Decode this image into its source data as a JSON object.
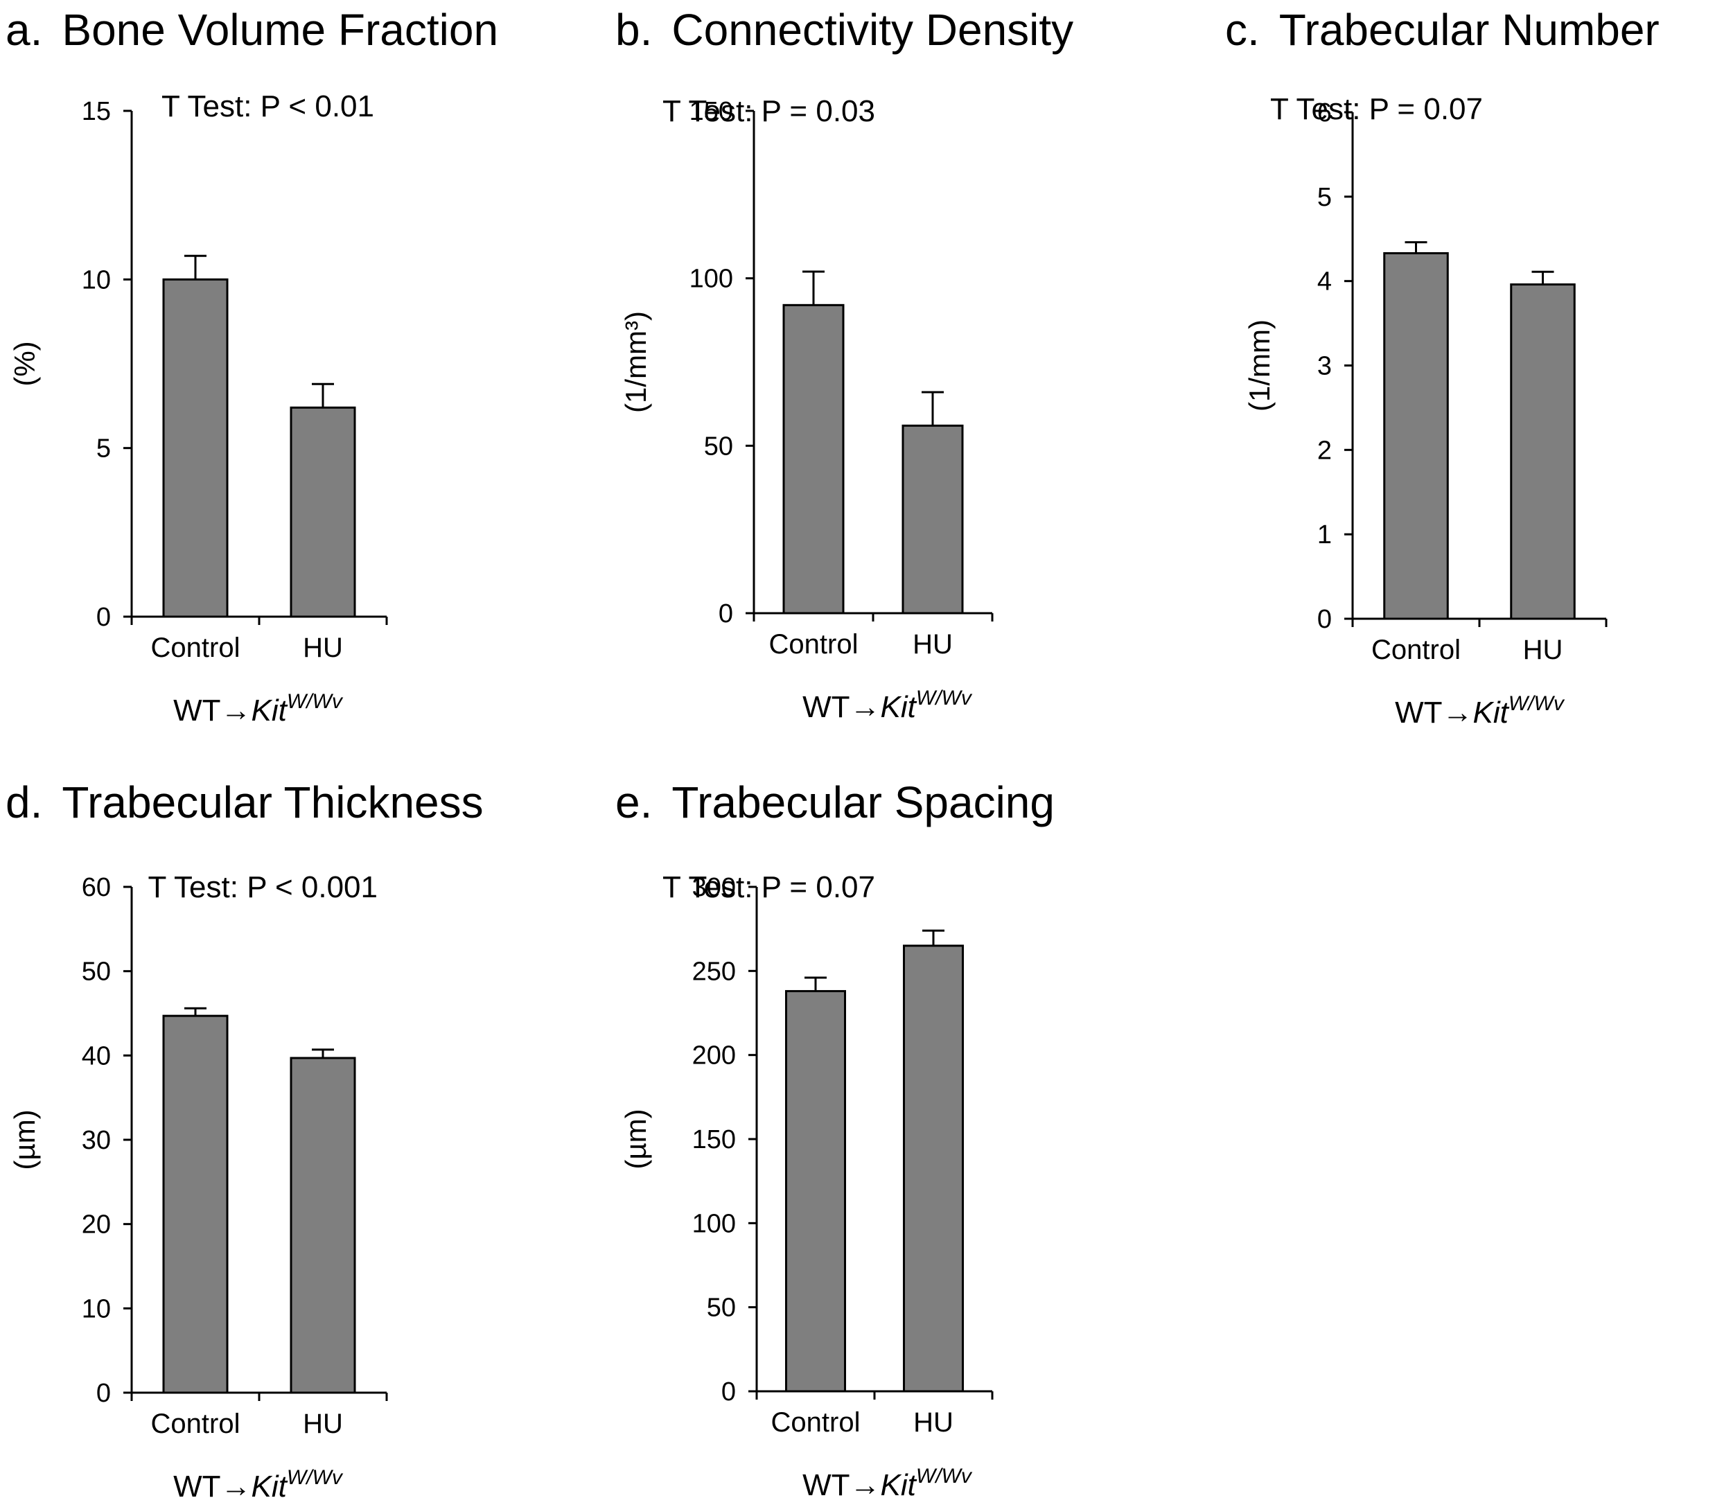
{
  "figure": {
    "background": "#ffffff",
    "bar_color": "#7f7f7f"
  },
  "chart_data": [
    {
      "type": "bar",
      "panel": "a.",
      "title": "Bone Volume Fraction",
      "annotation": "T Test: P < 0.01",
      "ylabel": "(%)",
      "xgroup": {
        "prefix": "WT",
        "arrow": "→",
        "gene": "Kit",
        "superscript": "W/Wv"
      },
      "categories": [
        "Control",
        "HU"
      ],
      "values": [
        10.0,
        6.2
      ],
      "errors": [
        0.7,
        0.7
      ],
      "ylim": [
        0,
        15
      ],
      "yticks": [
        "0",
        "5",
        "10",
        "15"
      ]
    },
    {
      "type": "bar",
      "panel": "b.",
      "title": "Connectivity Density",
      "annotation": "T Test: P = 0.03",
      "ylabel": "(1/mm³)",
      "xgroup": {
        "prefix": "WT",
        "arrow": "→",
        "gene": "Kit",
        "superscript": "W/Wv"
      },
      "categories": [
        "Control",
        "HU"
      ],
      "values": [
        92,
        56
      ],
      "errors": [
        10,
        10
      ],
      "ylim": [
        0,
        150
      ],
      "yticks": [
        "0",
        "50",
        "100",
        "150"
      ]
    },
    {
      "type": "bar",
      "panel": "c.",
      "title": "Trabecular Number",
      "annotation": "T Test: P = 0.07",
      "ylabel": "(1/mm)",
      "xgroup": {
        "prefix": "WT",
        "arrow": "→",
        "gene": "Kit",
        "superscript": "W/Wv"
      },
      "categories": [
        "Control",
        "HU"
      ],
      "values": [
        4.33,
        3.96
      ],
      "errors": [
        0.13,
        0.15
      ],
      "ylim": [
        0,
        6
      ],
      "yticks": [
        "0",
        "1",
        "2",
        "3",
        "4",
        "5",
        "6"
      ]
    },
    {
      "type": "bar",
      "panel": "d.",
      "title": "Trabecular Thickness",
      "annotation": "T Test: P < 0.001",
      "ylabel": "(µm)",
      "xgroup": {
        "prefix": "WT",
        "arrow": "→",
        "gene": "Kit",
        "superscript": "W/Wv"
      },
      "categories": [
        "Control",
        "HU"
      ],
      "values": [
        44.7,
        39.7
      ],
      "errors": [
        0.9,
        1.0
      ],
      "ylim": [
        0,
        60
      ],
      "yticks": [
        "0",
        "10",
        "20",
        "30",
        "40",
        "50",
        "60"
      ]
    },
    {
      "type": "bar",
      "panel": "e.",
      "title": "Trabecular Spacing",
      "annotation": "T Test: P = 0.07",
      "ylabel": "(µm)",
      "xgroup": {
        "prefix": "WT",
        "arrow": "→",
        "gene": "Kit",
        "superscript": "W/Wv"
      },
      "categories": [
        "Control",
        "HU"
      ],
      "values": [
        238,
        265
      ],
      "errors": [
        8,
        9
      ],
      "ylim": [
        0,
        300
      ],
      "yticks": [
        "0",
        "50",
        "100",
        "150",
        "200",
        "250",
        "300"
      ]
    }
  ]
}
